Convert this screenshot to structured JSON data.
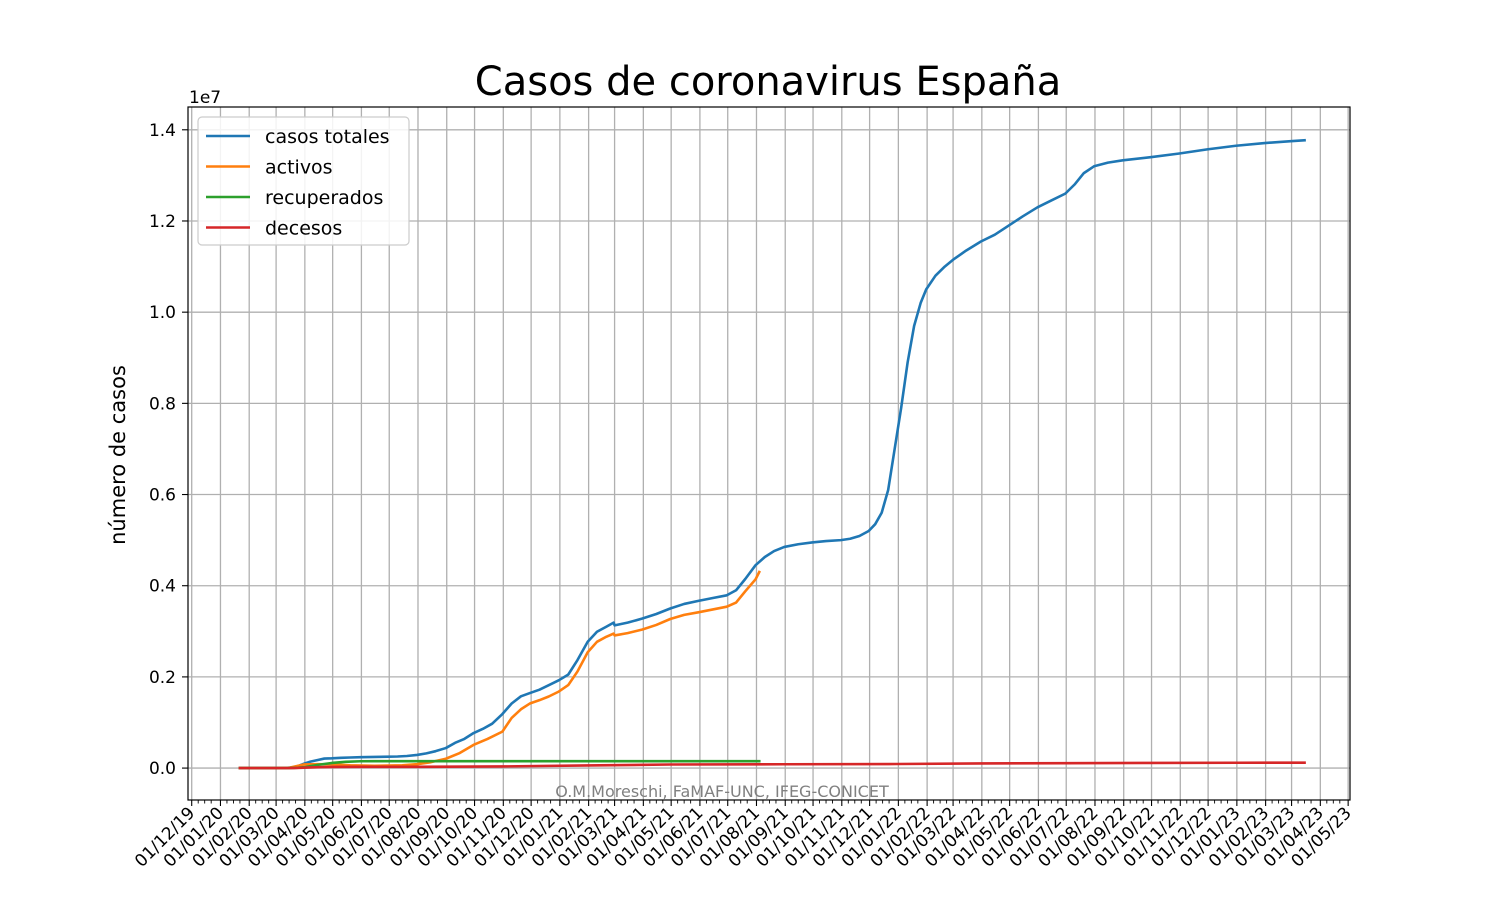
{
  "chart_data": {
    "type": "line",
    "title": "Casos de coronavirus España",
    "ylabel": "número de casos",
    "xlabel": "",
    "y_offset_label": "1e7",
    "y_scale": 10000000,
    "credit": "O.M.Moreschi, FaMAF-UNC, IFEG-CONICET",
    "grid": true,
    "legend_position": "top-left",
    "xlim": [
      "2019-11-27",
      "2023-05-03"
    ],
    "ylim": [
      -700000,
      14500000
    ],
    "x_ticks": [
      {
        "date": "2019-12-01",
        "label": "01/12/19"
      },
      {
        "date": "2020-01-01",
        "label": "01/01/20"
      },
      {
        "date": "2020-02-01",
        "label": "01/02/20"
      },
      {
        "date": "2020-03-01",
        "label": "01/03/20"
      },
      {
        "date": "2020-04-01",
        "label": "01/04/20"
      },
      {
        "date": "2020-05-01",
        "label": "01/05/20"
      },
      {
        "date": "2020-06-01",
        "label": "01/06/20"
      },
      {
        "date": "2020-07-01",
        "label": "01/07/20"
      },
      {
        "date": "2020-08-01",
        "label": "01/08/20"
      },
      {
        "date": "2020-09-01",
        "label": "01/09/20"
      },
      {
        "date": "2020-10-01",
        "label": "01/10/20"
      },
      {
        "date": "2020-11-01",
        "label": "01/11/20"
      },
      {
        "date": "2020-12-01",
        "label": "01/12/20"
      },
      {
        "date": "2021-01-01",
        "label": "01/01/21"
      },
      {
        "date": "2021-02-01",
        "label": "01/02/21"
      },
      {
        "date": "2021-03-01",
        "label": "01/03/21"
      },
      {
        "date": "2021-04-01",
        "label": "01/04/21"
      },
      {
        "date": "2021-05-01",
        "label": "01/05/21"
      },
      {
        "date": "2021-06-01",
        "label": "01/06/21"
      },
      {
        "date": "2021-07-01",
        "label": "01/07/21"
      },
      {
        "date": "2021-08-01",
        "label": "01/08/21"
      },
      {
        "date": "2021-09-01",
        "label": "01/09/21"
      },
      {
        "date": "2021-10-01",
        "label": "01/10/21"
      },
      {
        "date": "2021-11-01",
        "label": "01/11/21"
      },
      {
        "date": "2021-12-01",
        "label": "01/12/21"
      },
      {
        "date": "2022-01-01",
        "label": "01/01/22"
      },
      {
        "date": "2022-02-01",
        "label": "01/02/22"
      },
      {
        "date": "2022-03-01",
        "label": "01/03/22"
      },
      {
        "date": "2022-04-01",
        "label": "01/04/22"
      },
      {
        "date": "2022-05-01",
        "label": "01/05/22"
      },
      {
        "date": "2022-06-01",
        "label": "01/06/22"
      },
      {
        "date": "2022-07-01",
        "label": "01/07/22"
      },
      {
        "date": "2022-08-01",
        "label": "01/08/22"
      },
      {
        "date": "2022-09-01",
        "label": "01/09/22"
      },
      {
        "date": "2022-10-01",
        "label": "01/10/22"
      },
      {
        "date": "2022-11-01",
        "label": "01/11/22"
      },
      {
        "date": "2022-12-01",
        "label": "01/12/22"
      },
      {
        "date": "2023-01-01",
        "label": "01/01/23"
      },
      {
        "date": "2023-02-01",
        "label": "01/02/23"
      },
      {
        "date": "2023-03-01",
        "label": "01/03/23"
      },
      {
        "date": "2023-04-01",
        "label": "01/04/23"
      },
      {
        "date": "2023-05-01",
        "label": "01/05/23"
      }
    ],
    "y_ticks": [
      {
        "value": 0,
        "label": "0.0"
      },
      {
        "value": 2000000,
        "label": "0.2"
      },
      {
        "value": 4000000,
        "label": "0.4"
      },
      {
        "value": 6000000,
        "label": "0.6"
      },
      {
        "value": 8000000,
        "label": "0.8"
      },
      {
        "value": 10000000,
        "label": "1.0"
      },
      {
        "value": 12000000,
        "label": "1.2"
      },
      {
        "value": 14000000,
        "label": "1.4"
      }
    ],
    "series": [
      {
        "name": "casos totales",
        "color": "#1f77b4",
        "points": [
          [
            "2020-01-22",
            0
          ],
          [
            "2020-02-25",
            10
          ],
          [
            "2020-03-01",
            80
          ],
          [
            "2020-03-10",
            1700
          ],
          [
            "2020-03-15",
            7800
          ],
          [
            "2020-03-20",
            20000
          ],
          [
            "2020-03-25",
            47600
          ],
          [
            "2020-03-31",
            95900
          ],
          [
            "2020-04-07",
            141900
          ],
          [
            "2020-04-15",
            177600
          ],
          [
            "2020-04-22",
            208400
          ],
          [
            "2020-04-30",
            213400
          ],
          [
            "2020-05-10",
            224400
          ],
          [
            "2020-05-20",
            232000
          ],
          [
            "2020-05-31",
            239500
          ],
          [
            "2020-06-15",
            244100
          ],
          [
            "2020-06-30",
            249000
          ],
          [
            "2020-07-10",
            253900
          ],
          [
            "2020-07-20",
            264800
          ],
          [
            "2020-07-31",
            288500
          ],
          [
            "2020-08-10",
            322900
          ],
          [
            "2020-08-20",
            370900
          ],
          [
            "2020-08-31",
            439300
          ],
          [
            "2020-09-10",
            554100
          ],
          [
            "2020-09-20",
            640000
          ],
          [
            "2020-09-30",
            769000
          ],
          [
            "2020-10-10",
            861000
          ],
          [
            "2020-10-20",
            974000
          ],
          [
            "2020-10-31",
            1185600
          ],
          [
            "2020-11-10",
            1417000
          ],
          [
            "2020-11-20",
            1574000
          ],
          [
            "2020-11-30",
            1648000
          ],
          [
            "2020-12-10",
            1720000
          ],
          [
            "2020-12-20",
            1818000
          ],
          [
            "2020-12-31",
            1928000
          ],
          [
            "2021-01-10",
            2050000
          ],
          [
            "2021-01-20",
            2370000
          ],
          [
            "2021-01-31",
            2770000
          ],
          [
            "2021-02-10",
            2990000
          ],
          [
            "2021-02-20",
            3100000
          ],
          [
            "2021-02-28",
            3190000
          ],
          [
            "2021-03-01",
            3130000
          ],
          [
            "2021-03-15",
            3190000
          ],
          [
            "2021-03-31",
            3280000
          ],
          [
            "2021-04-15",
            3380000
          ],
          [
            "2021-04-30",
            3500000
          ],
          [
            "2021-05-15",
            3600000
          ],
          [
            "2021-05-31",
            3670000
          ],
          [
            "2021-06-15",
            3730000
          ],
          [
            "2021-06-30",
            3790000
          ],
          [
            "2021-07-10",
            3900000
          ],
          [
            "2021-07-20",
            4150000
          ],
          [
            "2021-07-31",
            4450000
          ],
          [
            "2021-08-10",
            4630000
          ],
          [
            "2021-08-20",
            4760000
          ],
          [
            "2021-08-31",
            4850000
          ],
          [
            "2021-09-15",
            4910000
          ],
          [
            "2021-09-30",
            4950000
          ],
          [
            "2021-10-15",
            4980000
          ],
          [
            "2021-10-31",
            5000000
          ],
          [
            "2021-11-10",
            5030000
          ],
          [
            "2021-11-20",
            5090000
          ],
          [
            "2021-11-30",
            5200000
          ],
          [
            "2021-12-07",
            5350000
          ],
          [
            "2021-12-14",
            5600000
          ],
          [
            "2021-12-21",
            6100000
          ],
          [
            "2021-12-28",
            7000000
          ],
          [
            "2022-01-04",
            7900000
          ],
          [
            "2022-01-11",
            8900000
          ],
          [
            "2022-01-18",
            9700000
          ],
          [
            "2022-01-25",
            10200000
          ],
          [
            "2022-01-31",
            10500000
          ],
          [
            "2022-02-10",
            10800000
          ],
          [
            "2022-02-20",
            11000000
          ],
          [
            "2022-03-01",
            11150000
          ],
          [
            "2022-03-15",
            11350000
          ],
          [
            "2022-03-31",
            11550000
          ],
          [
            "2022-04-15",
            11700000
          ],
          [
            "2022-04-30",
            11900000
          ],
          [
            "2022-05-15",
            12100000
          ],
          [
            "2022-05-31",
            12300000
          ],
          [
            "2022-06-15",
            12450000
          ],
          [
            "2022-06-30",
            12600000
          ],
          [
            "2022-07-10",
            12800000
          ],
          [
            "2022-07-20",
            13050000
          ],
          [
            "2022-07-31",
            13200000
          ],
          [
            "2022-08-15",
            13280000
          ],
          [
            "2022-08-31",
            13330000
          ],
          [
            "2022-09-30",
            13400000
          ],
          [
            "2022-10-31",
            13480000
          ],
          [
            "2022-11-30",
            13570000
          ],
          [
            "2022-12-31",
            13650000
          ],
          [
            "2023-01-31",
            13710000
          ],
          [
            "2023-02-28",
            13750000
          ],
          [
            "2023-03-15",
            13770000
          ]
        ]
      },
      {
        "name": "activos",
        "color": "#ff7f0e",
        "points": [
          [
            "2020-01-22",
            0
          ],
          [
            "2020-03-01",
            80
          ],
          [
            "2020-03-15",
            7500
          ],
          [
            "2020-03-31",
            79000
          ],
          [
            "2020-04-15",
            85000
          ],
          [
            "2020-04-30",
            80000
          ],
          [
            "2020-05-20",
            60000
          ],
          [
            "2020-06-15",
            50000
          ],
          [
            "2020-07-15",
            60000
          ],
          [
            "2020-07-31",
            85000
          ],
          [
            "2020-08-15",
            130000
          ],
          [
            "2020-08-31",
            205000
          ],
          [
            "2020-09-15",
            330000
          ],
          [
            "2020-09-30",
            510000
          ],
          [
            "2020-10-15",
            640000
          ],
          [
            "2020-10-31",
            800000
          ],
          [
            "2020-11-10",
            1100000
          ],
          [
            "2020-11-20",
            1290000
          ],
          [
            "2020-11-30",
            1420000
          ],
          [
            "2020-12-10",
            1490000
          ],
          [
            "2020-12-20",
            1570000
          ],
          [
            "2020-12-31",
            1680000
          ],
          [
            "2021-01-10",
            1820000
          ],
          [
            "2021-01-20",
            2120000
          ],
          [
            "2021-01-31",
            2540000
          ],
          [
            "2021-02-10",
            2770000
          ],
          [
            "2021-02-20",
            2880000
          ],
          [
            "2021-02-28",
            2950000
          ],
          [
            "2021-03-01",
            2910000
          ],
          [
            "2021-03-15",
            2960000
          ],
          [
            "2021-03-31",
            3040000
          ],
          [
            "2021-04-15",
            3140000
          ],
          [
            "2021-04-30",
            3270000
          ],
          [
            "2021-05-15",
            3360000
          ],
          [
            "2021-05-31",
            3420000
          ],
          [
            "2021-06-15",
            3480000
          ],
          [
            "2021-06-30",
            3540000
          ],
          [
            "2021-07-10",
            3630000
          ],
          [
            "2021-07-20",
            3880000
          ],
          [
            "2021-07-31",
            4140000
          ],
          [
            "2021-08-04",
            4300000
          ]
        ]
      },
      {
        "name": "recuperados",
        "color": "#2ca02c",
        "points": [
          [
            "2020-01-22",
            0
          ],
          [
            "2020-03-01",
            0
          ],
          [
            "2020-03-15",
            500
          ],
          [
            "2020-03-25",
            9000
          ],
          [
            "2020-03-31",
            19000
          ],
          [
            "2020-04-15",
            70000
          ],
          [
            "2020-04-30",
            112000
          ],
          [
            "2020-05-15",
            137000
          ],
          [
            "2020-05-31",
            150000
          ],
          [
            "2020-06-15",
            150300
          ],
          [
            "2020-08-04",
            150300
          ],
          [
            "2021-08-04",
            150400
          ]
        ]
      },
      {
        "name": "decesos",
        "color": "#d62728",
        "points": [
          [
            "2020-01-22",
            0
          ],
          [
            "2020-03-10",
            35
          ],
          [
            "2020-03-20",
            1100
          ],
          [
            "2020-03-31",
            8500
          ],
          [
            "2020-04-15",
            19100
          ],
          [
            "2020-04-30",
            24500
          ],
          [
            "2020-05-31",
            27100
          ],
          [
            "2020-07-31",
            28400
          ],
          [
            "2020-10-31",
            35900
          ],
          [
            "2021-01-31",
            58300
          ],
          [
            "2021-04-30",
            78400
          ],
          [
            "2021-08-31",
            84300
          ],
          [
            "2021-12-31",
            89400
          ],
          [
            "2022-03-31",
            102500
          ],
          [
            "2022-06-30",
            107500
          ],
          [
            "2022-09-30",
            113200
          ],
          [
            "2022-12-31",
            117100
          ],
          [
            "2023-03-15",
            119000
          ]
        ]
      }
    ]
  }
}
